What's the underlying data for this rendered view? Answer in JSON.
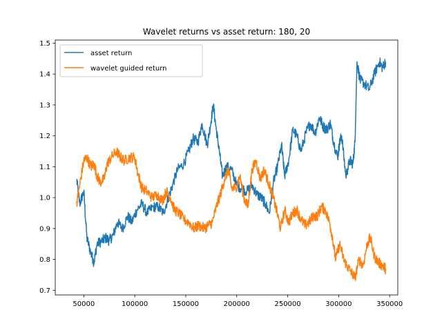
{
  "chart_data": {
    "type": "line",
    "title": "Wavelet returns vs asset return: 180, 20",
    "xlabel": "",
    "ylabel": "",
    "xlim": [
      22000,
      358000
    ],
    "ylim": [
      0.685,
      1.51
    ],
    "x_ticks": [
      50000,
      100000,
      150000,
      200000,
      250000,
      300000,
      350000
    ],
    "x_tick_labels": [
      "50000",
      "100000",
      "150000",
      "200000",
      "250000",
      "300000",
      "350000"
    ],
    "y_ticks": [
      0.7,
      0.8,
      0.9,
      1.0,
      1.1,
      1.2,
      1.3,
      1.4,
      1.5
    ],
    "y_tick_labels": [
      "0.7",
      "0.8",
      "0.9",
      "1.0",
      "1.1",
      "1.2",
      "1.3",
      "1.4",
      "1.5"
    ],
    "grid": false,
    "legend_position": "top-left",
    "series": [
      {
        "name": "asset return",
        "color": "#1f77b4",
        "x": [
          43000,
          46000,
          50000,
          53000,
          57000,
          60000,
          63000,
          68000,
          72000,
          75000,
          79000,
          83000,
          88000,
          93000,
          97000,
          102000,
          107000,
          112000,
          118000,
          123000,
          128000,
          133000,
          137000,
          142000,
          148000,
          153000,
          157000,
          162000,
          166000,
          171000,
          174000,
          177000,
          180000,
          183000,
          186000,
          190000,
          195000,
          200000,
          205000,
          210000,
          215000,
          220000,
          224000,
          228000,
          232000,
          236000,
          240000,
          244000,
          247000,
          251000,
          255000,
          259000,
          263000,
          268000,
          272000,
          277000,
          281000,
          285000,
          288000,
          292000,
          295000,
          299000,
          301000,
          303000,
          307000,
          311000,
          314000,
          316000,
          318000,
          321000,
          325000,
          330000,
          335000,
          340000,
          343000,
          346000
        ],
        "y": [
          1.06,
          0.98,
          1.02,
          0.87,
          0.82,
          0.79,
          0.85,
          0.86,
          0.87,
          0.86,
          0.88,
          0.92,
          0.9,
          0.94,
          0.92,
          0.96,
          0.98,
          0.95,
          0.97,
          0.97,
          0.95,
          1.0,
          1.04,
          1.09,
          1.11,
          1.15,
          1.19,
          1.18,
          1.24,
          1.17,
          1.23,
          1.3,
          1.22,
          1.15,
          1.07,
          1.1,
          1.09,
          1.04,
          1.03,
          1.02,
          1.04,
          1.01,
          1.0,
          0.98,
          0.95,
          1.05,
          1.1,
          1.17,
          1.07,
          1.12,
          1.22,
          1.2,
          1.15,
          1.21,
          1.24,
          1.21,
          1.26,
          1.23,
          1.22,
          1.24,
          1.18,
          1.13,
          1.18,
          1.2,
          1.07,
          1.12,
          1.11,
          1.18,
          1.44,
          1.38,
          1.37,
          1.35,
          1.4,
          1.44,
          1.42,
          1.44
        ]
      },
      {
        "name": "wavelet guided return",
        "color": "#ff7f0e",
        "x": [
          43000,
          46000,
          50000,
          53000,
          57000,
          60000,
          63000,
          66000,
          70000,
          73000,
          77000,
          82000,
          86000,
          90000,
          95000,
          100000,
          103000,
          107000,
          112000,
          117000,
          122000,
          127000,
          131000,
          135000,
          139000,
          143000,
          148000,
          153000,
          158000,
          163000,
          168000,
          172000,
          176000,
          180000,
          184000,
          188000,
          192000,
          195000,
          199000,
          203000,
          207000,
          211000,
          215000,
          219000,
          223000,
          227000,
          231000,
          235000,
          239000,
          243000,
          247000,
          251000,
          255000,
          259000,
          263000,
          267000,
          271000,
          275000,
          279000,
          283000,
          287000,
          291000,
          294000,
          297000,
          301000,
          305000,
          308000,
          312000,
          316000,
          320000,
          324000,
          328000,
          331000,
          335000,
          339000,
          343000,
          346000
        ],
        "y": [
          0.98,
          1.04,
          1.12,
          1.13,
          1.1,
          1.11,
          1.07,
          1.05,
          1.06,
          1.11,
          1.13,
          1.15,
          1.13,
          1.12,
          1.13,
          1.13,
          1.08,
          1.03,
          1.02,
          1.0,
          1.01,
          0.99,
          1.02,
          1.0,
          0.96,
          0.95,
          0.93,
          0.92,
          0.9,
          0.91,
          0.9,
          0.91,
          0.92,
          0.97,
          1.01,
          1.06,
          1.09,
          1.03,
          1.03,
          1.07,
          1.0,
          0.97,
          1.09,
          1.12,
          1.06,
          1.09,
          1.05,
          1.01,
          0.96,
          0.9,
          0.96,
          0.92,
          0.95,
          0.96,
          0.93,
          0.91,
          0.92,
          0.94,
          0.94,
          0.97,
          0.96,
          0.92,
          0.87,
          0.8,
          0.85,
          0.8,
          0.78,
          0.76,
          0.74,
          0.8,
          0.78,
          0.85,
          0.87,
          0.81,
          0.79,
          0.78,
          0.77
        ]
      }
    ]
  }
}
